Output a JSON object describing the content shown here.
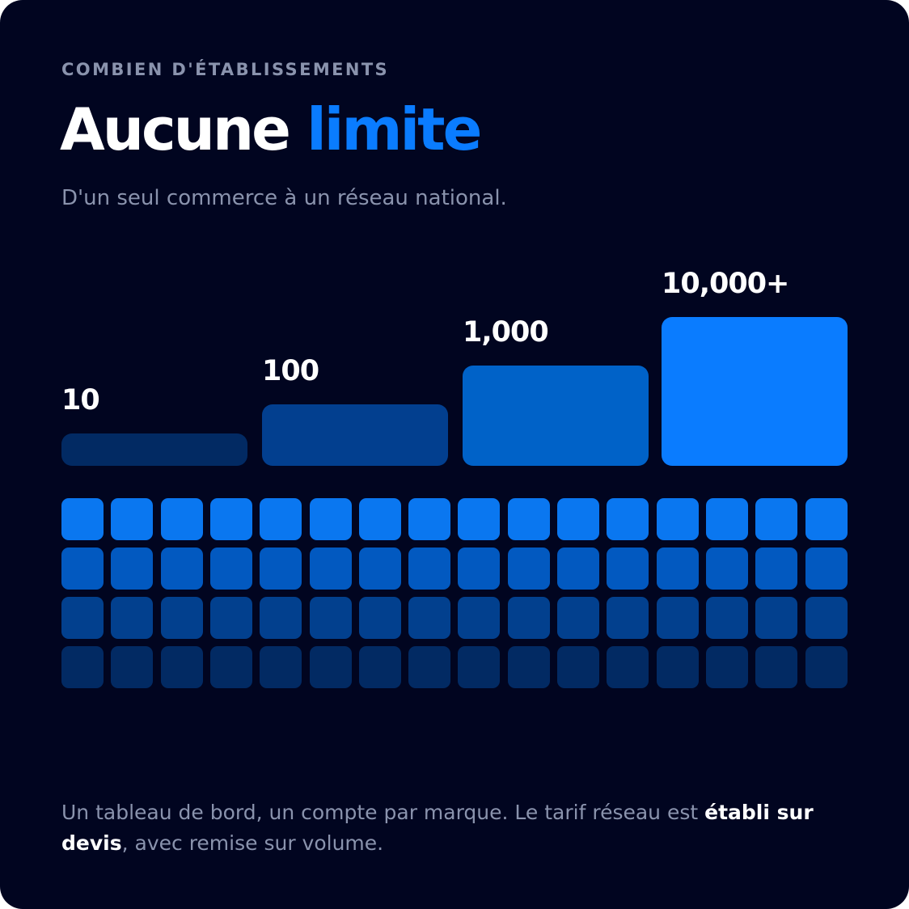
{
  "eyebrow": "COMBIEN D'ÉTABLISSEMENTS",
  "title": {
    "main": "Aucune",
    "accent": "limite"
  },
  "subtitle": "D'un seul commerce à un réseau national.",
  "tiers": [
    {
      "label": "10",
      "color": "#022a63"
    },
    {
      "label": "100",
      "color": "#023f8f"
    },
    {
      "label": "1,000",
      "color": "#0062c8"
    },
    {
      "label": "10,000+",
      "color": "#0a7cff"
    }
  ],
  "grid": {
    "columns": 16,
    "row_colors": [
      "#0a77f0",
      "#0259c0",
      "#02408e",
      "#022a63"
    ]
  },
  "footer": {
    "text_before": "Un tableau de bord, un compte par marque. Le tarif réseau est ",
    "bold": "établi sur devis",
    "text_after": ", avec remise sur volume."
  }
}
